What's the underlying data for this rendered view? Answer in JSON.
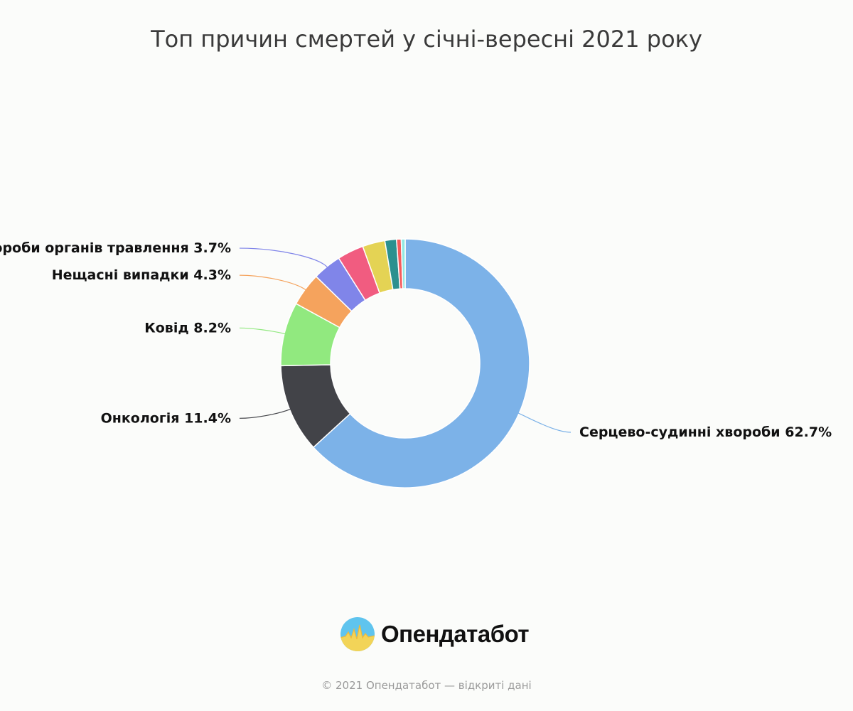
{
  "title": "Топ причин смертей у січні-вересні 2021 року",
  "chart_data": {
    "type": "pie",
    "variant": "donut",
    "slices": [
      {
        "label": "Серцево-судинні хвороби",
        "value": 62.7,
        "color": "#7cb2e8",
        "show_label": true
      },
      {
        "label": "Онкологія",
        "value": 11.4,
        "color": "#424348",
        "show_label": true
      },
      {
        "label": "Ковід",
        "value": 8.2,
        "color": "#91e97f",
        "show_label": true
      },
      {
        "label": "Нещасні випадки",
        "value": 4.3,
        "color": "#f5a35d",
        "show_label": true
      },
      {
        "label": "Хвороби органів травлення",
        "value": 3.7,
        "color": "#8085e9",
        "show_label": true
      },
      {
        "label": "",
        "value": 3.4,
        "color": "#f15c80",
        "show_label": false
      },
      {
        "label": "",
        "value": 2.9,
        "color": "#e4d354",
        "show_label": false
      },
      {
        "label": "",
        "value": 1.5,
        "color": "#2b908f",
        "show_label": false
      },
      {
        "label": "",
        "value": 0.6,
        "color": "#f45b5b",
        "show_label": false
      },
      {
        "label": "",
        "value": 0.5,
        "color": "#91e8e1",
        "show_label": false
      }
    ]
  },
  "logo": {
    "text": "Опендатабот"
  },
  "footer": "© 2021 Опендатабот — відкриті дані"
}
